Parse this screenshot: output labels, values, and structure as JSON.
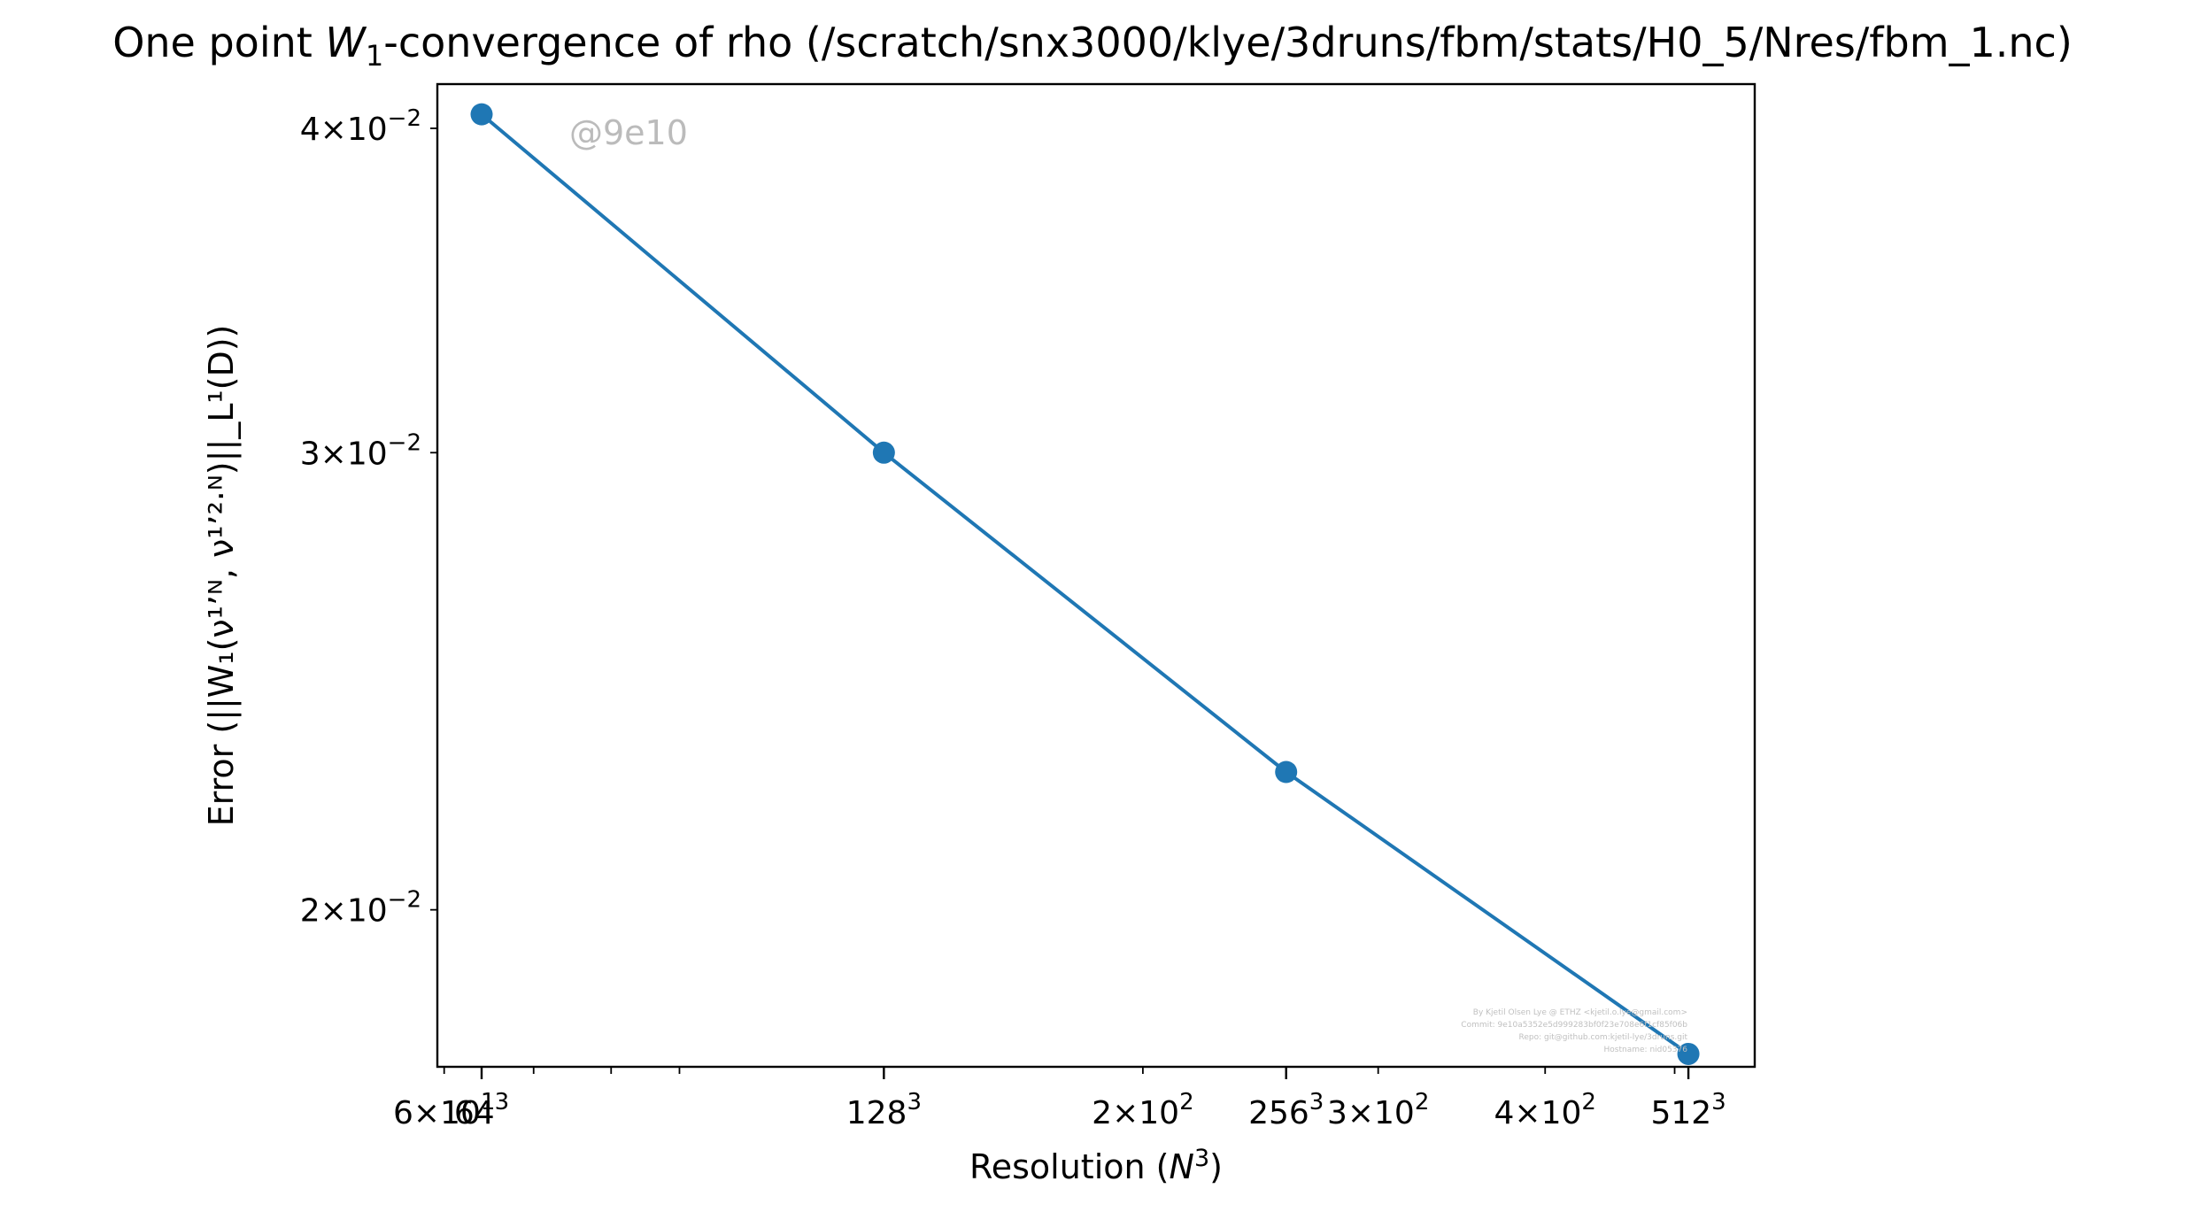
{
  "chart_data": {
    "type": "line",
    "title_prefix": "One point ",
    "title_math": "W",
    "title_sub": "1",
    "title_suffix": "-convergence of rho (/scratch/snx3000/klye/3druns/fbm/stats/H0_5/Nres/fbm_1.nc)",
    "xlabel_text": "Resolution (",
    "xlabel_math": "N",
    "xlabel_sup": "3",
    "xlabel_close": ")",
    "ylabel": "Error (||W₁(ν¹ʼᴺ, ν¹ʼ²·ᴺ)||_L¹(D))",
    "x_scale": "log",
    "y_scale": "log",
    "xlim": [
      59.3,
      574
    ],
    "ylim": [
      0.0174,
      0.0416
    ],
    "grid": false,
    "color": "#1f77b4",
    "series": [
      {
        "x": [
          64,
          128,
          256,
          512
        ],
        "y": [
          0.0405,
          0.03,
          0.0226,
          0.0176
        ]
      }
    ],
    "x_major_ticks": [
      {
        "value": 64,
        "base": "64",
        "sup": "3"
      },
      {
        "value": 128,
        "base": "128",
        "sup": "3"
      },
      {
        "value": 256,
        "base": "256",
        "sup": "3"
      },
      {
        "value": 512,
        "base": "512",
        "sup": "3"
      }
    ],
    "x_minor_ticks": [
      {
        "value": 60,
        "mant": "6",
        "exp": "1"
      },
      {
        "value": 200,
        "mant": "2",
        "exp": "2"
      },
      {
        "value": 300,
        "mant": "3",
        "exp": "2"
      },
      {
        "value": 400,
        "mant": "4",
        "exp": "2"
      }
    ],
    "x_minor_marks": [
      70,
      80,
      90,
      500
    ],
    "y_ticks": [
      {
        "value": 0.04,
        "mant": "4",
        "exp": "−2"
      },
      {
        "value": 0.03,
        "mant": "3",
        "exp": "−2"
      },
      {
        "value": 0.02,
        "mant": "2",
        "exp": "−2"
      }
    ],
    "annotation": "@9e10",
    "credit_lines": [
      "By Kjetil Olsen Lye @ ETHZ <kjetil.o.lye@gmail.com>",
      "Commit: 9e10a5352e5d999283bf0f23e708e6f1cf85f06b",
      "Repo: git@github.com:kjetil-lye/3druns.git",
      "Hostname: nid05376"
    ]
  }
}
